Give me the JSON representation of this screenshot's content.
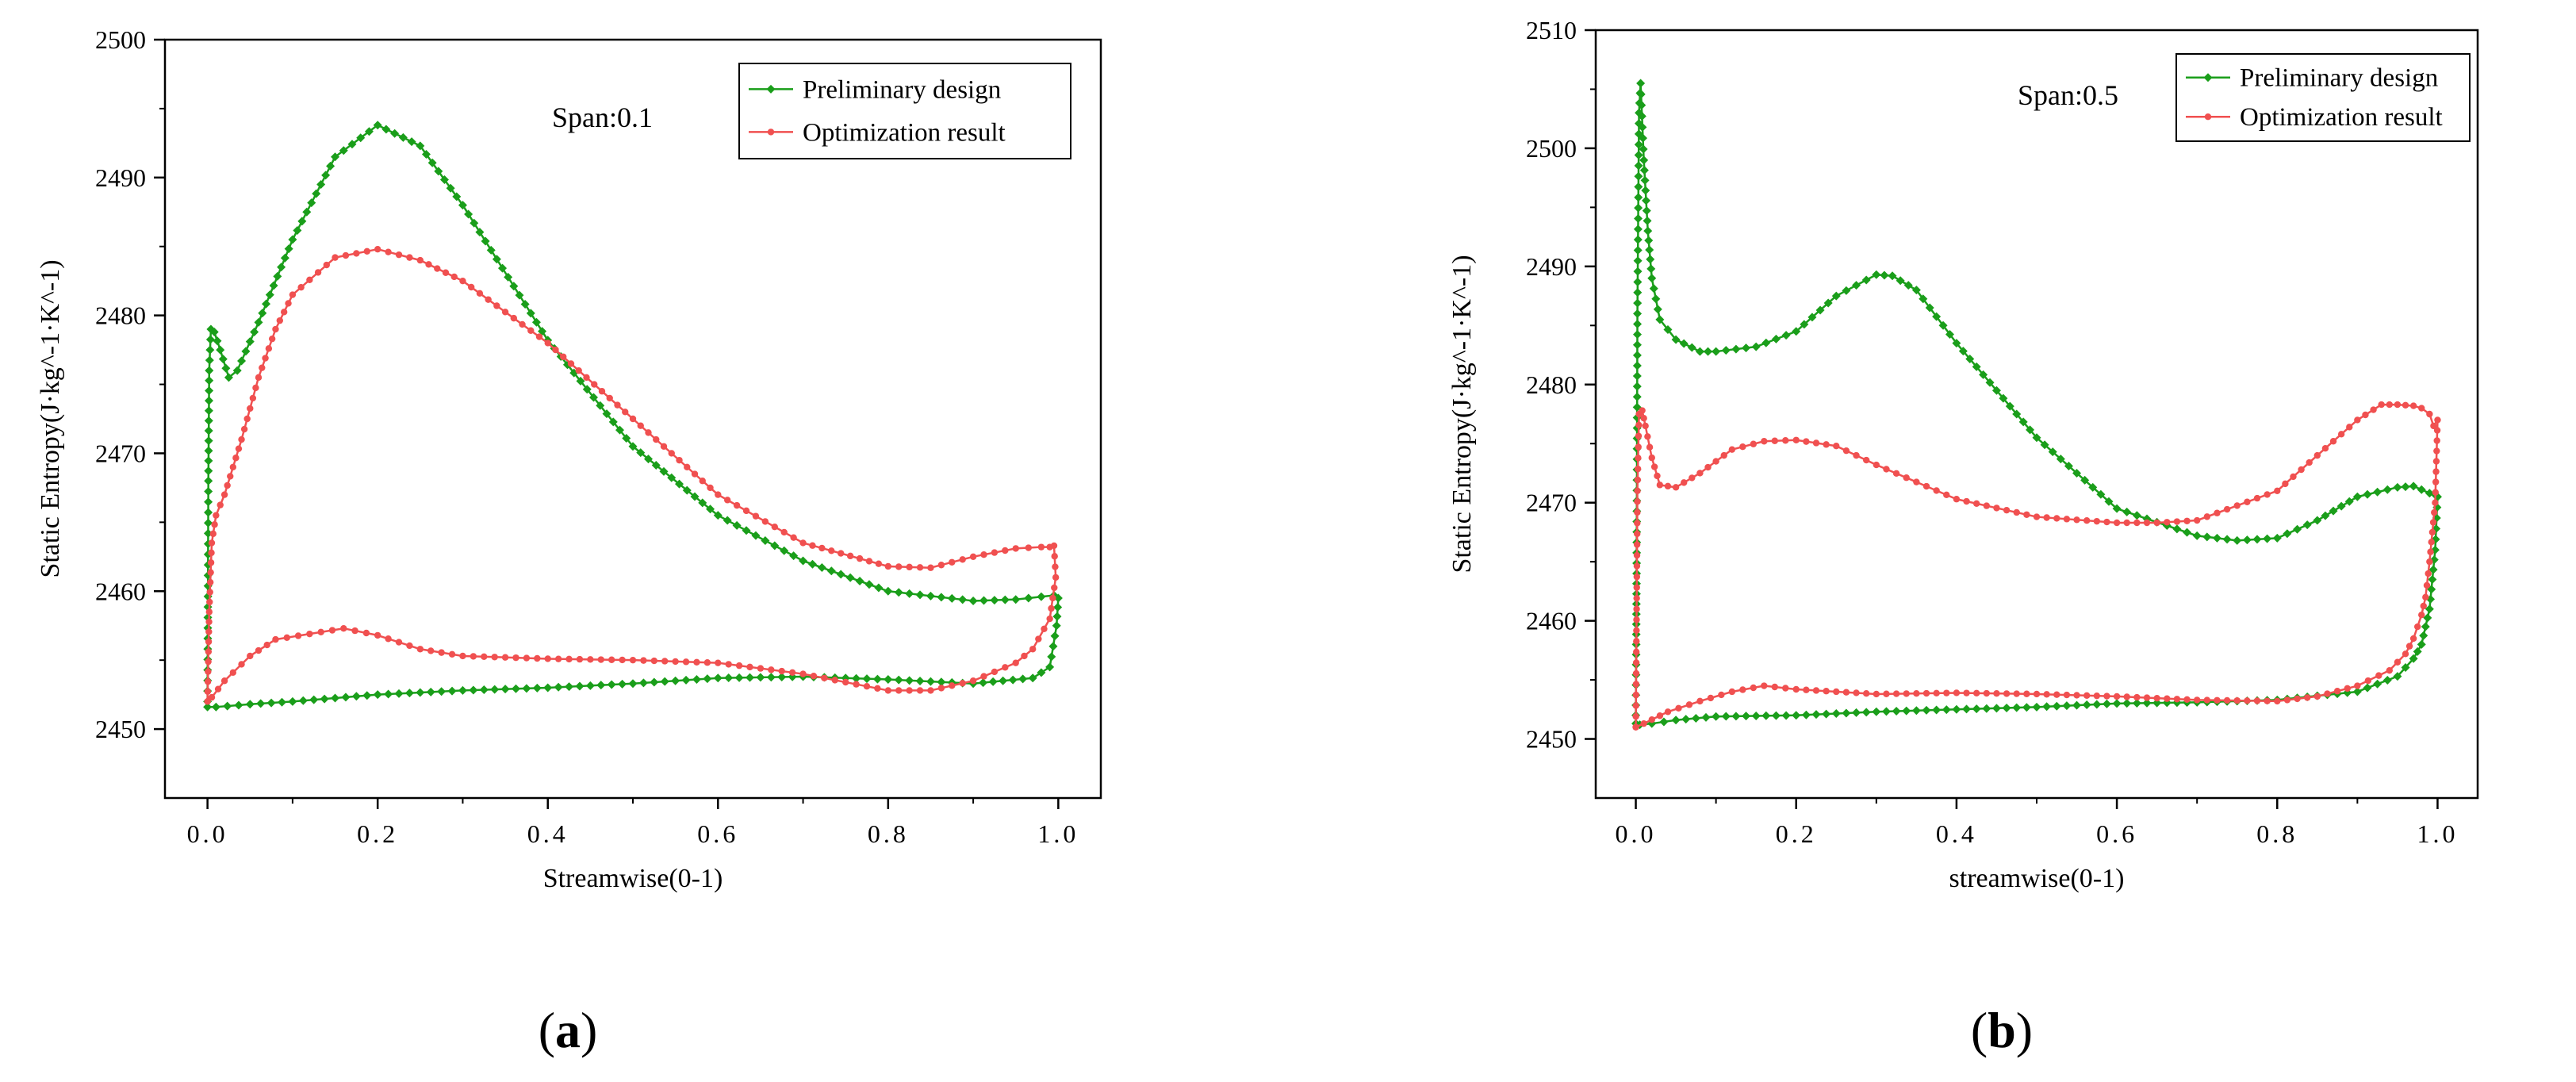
{
  "captions": {
    "a": "a",
    "b": "b"
  },
  "colors": {
    "preliminary": "#1a9e1a",
    "optimization": "#f05050",
    "axis": "#000000"
  },
  "chart_data": [
    {
      "type": "line",
      "panel": "a",
      "annotation": "Span:0.1",
      "xlabel": "Streamwise(0-1)",
      "ylabel": "Static Entropy(J·kg^-1·K^-1)",
      "xlim": [
        -0.05,
        1.05
      ],
      "ylim": [
        2445,
        2500
      ],
      "xticks": [
        0.0,
        0.2,
        0.4,
        0.6,
        0.8,
        1.0
      ],
      "xtick_labels": [
        "0.0",
        "0.2",
        "0.4",
        "0.6",
        "0.8",
        "1.0"
      ],
      "yticks": [
        2450,
        2460,
        2470,
        2480,
        2490,
        2500
      ],
      "ytick_labels": [
        "2450",
        "2460",
        "2470",
        "2480",
        "2490",
        "2500"
      ],
      "legend_position": "top-right",
      "series": [
        {
          "name": "Preliminary design",
          "color_key": "preliminary",
          "marker": "diamond",
          "x": [
            0.0,
            0.001,
            0.002,
            0.004,
            0.008,
            0.015,
            0.025,
            0.035,
            0.06,
            0.1,
            0.15,
            0.2,
            0.25,
            0.3,
            0.4,
            0.5,
            0.6,
            0.7,
            0.8,
            0.9,
            0.95,
            0.98,
            0.995,
            1.0,
            0.998,
            0.99,
            0.97,
            0.9,
            0.8,
            0.7,
            0.6,
            0.5,
            0.4,
            0.3,
            0.2,
            0.1,
            0.05,
            0.01,
            0.0
          ],
          "y": [
            2452.0,
            2468.0,
            2476.0,
            2479.0,
            2478.8,
            2477.5,
            2475.5,
            2476.0,
            2479.5,
            2485.5,
            2491.5,
            2493.8,
            2492.3,
            2488.0,
            2478.2,
            2470.5,
            2465.5,
            2462.2,
            2460.0,
            2459.3,
            2459.4,
            2459.6,
            2459.7,
            2459.5,
            2457.5,
            2454.5,
            2453.7,
            2453.3,
            2453.6,
            2453.8,
            2453.7,
            2453.3,
            2453.0,
            2452.8,
            2452.5,
            2452.0,
            2451.8,
            2451.6,
            2451.6
          ]
        },
        {
          "name": "Optimization result",
          "color_key": "optimization",
          "marker": "circle",
          "x": [
            0.0,
            0.002,
            0.005,
            0.01,
            0.02,
            0.04,
            0.06,
            0.08,
            0.1,
            0.15,
            0.2,
            0.25,
            0.3,
            0.4,
            0.5,
            0.6,
            0.7,
            0.8,
            0.85,
            0.9,
            0.95,
            0.98,
            0.99,
            0.995,
            0.997,
            0.99,
            0.97,
            0.95,
            0.9,
            0.85,
            0.8,
            0.7,
            0.6,
            0.5,
            0.4,
            0.3,
            0.25,
            0.2,
            0.16,
            0.12,
            0.08,
            0.05,
            0.02,
            0.005,
            0.0
          ],
          "y": [
            2452.0,
            2458.5,
            2463.5,
            2465.5,
            2467.0,
            2471.0,
            2475.5,
            2479.0,
            2481.5,
            2484.2,
            2484.8,
            2484.0,
            2482.5,
            2478.0,
            2472.5,
            2467.0,
            2463.5,
            2461.8,
            2461.7,
            2462.5,
            2463.1,
            2463.2,
            2463.2,
            2463.3,
            2461.0,
            2458.0,
            2455.8,
            2454.8,
            2453.5,
            2452.8,
            2452.8,
            2454.0,
            2454.8,
            2455.0,
            2455.1,
            2455.3,
            2455.8,
            2456.8,
            2457.3,
            2456.9,
            2456.5,
            2455.3,
            2453.5,
            2452.3,
            2452.0
          ]
        }
      ]
    },
    {
      "type": "line",
      "panel": "b",
      "annotation": "Span:0.5",
      "xlabel": "streamwise(0-1)",
      "ylabel": "Static Entropy(J·kg^-1·K^-1)",
      "xlim": [
        -0.05,
        1.05
      ],
      "ylim": [
        2445,
        2510
      ],
      "xticks": [
        0.0,
        0.2,
        0.4,
        0.6,
        0.8,
        1.0
      ],
      "xtick_labels": [
        "0.0",
        "0.2",
        "0.4",
        "0.6",
        "0.8",
        "1.0"
      ],
      "yticks": [
        2450,
        2460,
        2470,
        2480,
        2490,
        2500,
        2510
      ],
      "ytick_labels": [
        "2450",
        "2460",
        "2470",
        "2480",
        "2490",
        "2500",
        "2510"
      ],
      "legend_position": "top-right",
      "series": [
        {
          "name": "Preliminary design",
          "color_key": "preliminary",
          "marker": "diamond",
          "x": [
            0.0,
            0.001,
            0.002,
            0.004,
            0.006,
            0.01,
            0.015,
            0.02,
            0.03,
            0.05,
            0.08,
            0.1,
            0.15,
            0.2,
            0.25,
            0.3,
            0.32,
            0.35,
            0.4,
            0.5,
            0.6,
            0.7,
            0.75,
            0.8,
            0.85,
            0.9,
            0.95,
            0.97,
            0.99,
            0.998,
            1.0,
            0.997,
            0.99,
            0.98,
            0.97,
            0.95,
            0.9,
            0.8,
            0.7,
            0.6,
            0.5,
            0.4,
            0.3,
            0.2,
            0.1,
            0.05,
            0.02,
            0.005,
            0.0
          ],
          "y": [
            2452.0,
            2464.0,
            2486.0,
            2503.0,
            2505.5,
            2499.0,
            2493.0,
            2489.0,
            2485.5,
            2483.8,
            2482.8,
            2482.8,
            2483.2,
            2484.5,
            2487.5,
            2489.3,
            2489.2,
            2488.0,
            2483.5,
            2475.5,
            2469.5,
            2467.2,
            2466.8,
            2467.0,
            2468.5,
            2470.5,
            2471.3,
            2471.4,
            2470.8,
            2470.6,
            2470.5,
            2466.0,
            2461.0,
            2458.0,
            2456.8,
            2455.3,
            2454.0,
            2453.3,
            2453.1,
            2453.0,
            2452.7,
            2452.5,
            2452.3,
            2452.0,
            2451.9,
            2451.6,
            2451.3,
            2451.2,
            2451.3
          ]
        },
        {
          "name": "Optimization result",
          "color_key": "optimization",
          "marker": "circle",
          "x": [
            0.0,
            0.001,
            0.002,
            0.004,
            0.008,
            0.012,
            0.02,
            0.03,
            0.05,
            0.08,
            0.12,
            0.16,
            0.2,
            0.25,
            0.3,
            0.4,
            0.5,
            0.6,
            0.65,
            0.7,
            0.8,
            0.85,
            0.9,
            0.93,
            0.95,
            0.97,
            0.98,
            0.99,
            0.995,
            1.0,
            0.997,
            0.99,
            0.985,
            0.98,
            0.97,
            0.96,
            0.94,
            0.9,
            0.85,
            0.8,
            0.7,
            0.6,
            0.5,
            0.4,
            0.3,
            0.2,
            0.16,
            0.12,
            0.08,
            0.04,
            0.01,
            0.0
          ],
          "y": [
            2451.0,
            2461.0,
            2471.0,
            2477.5,
            2477.8,
            2476.5,
            2473.8,
            2471.5,
            2471.3,
            2472.5,
            2474.5,
            2475.2,
            2475.3,
            2474.8,
            2473.2,
            2470.3,
            2468.8,
            2468.3,
            2468.3,
            2468.5,
            2471.0,
            2474.0,
            2477.0,
            2478.3,
            2478.3,
            2478.2,
            2478.0,
            2477.5,
            2476.5,
            2477.0,
            2470.0,
            2465.0,
            2462.0,
            2460.5,
            2458.5,
            2457.2,
            2455.8,
            2454.5,
            2453.6,
            2453.2,
            2453.3,
            2453.6,
            2453.8,
            2453.9,
            2453.8,
            2454.2,
            2454.5,
            2454.0,
            2453.2,
            2452.3,
            2451.3,
            2451.0
          ]
        }
      ]
    }
  ]
}
